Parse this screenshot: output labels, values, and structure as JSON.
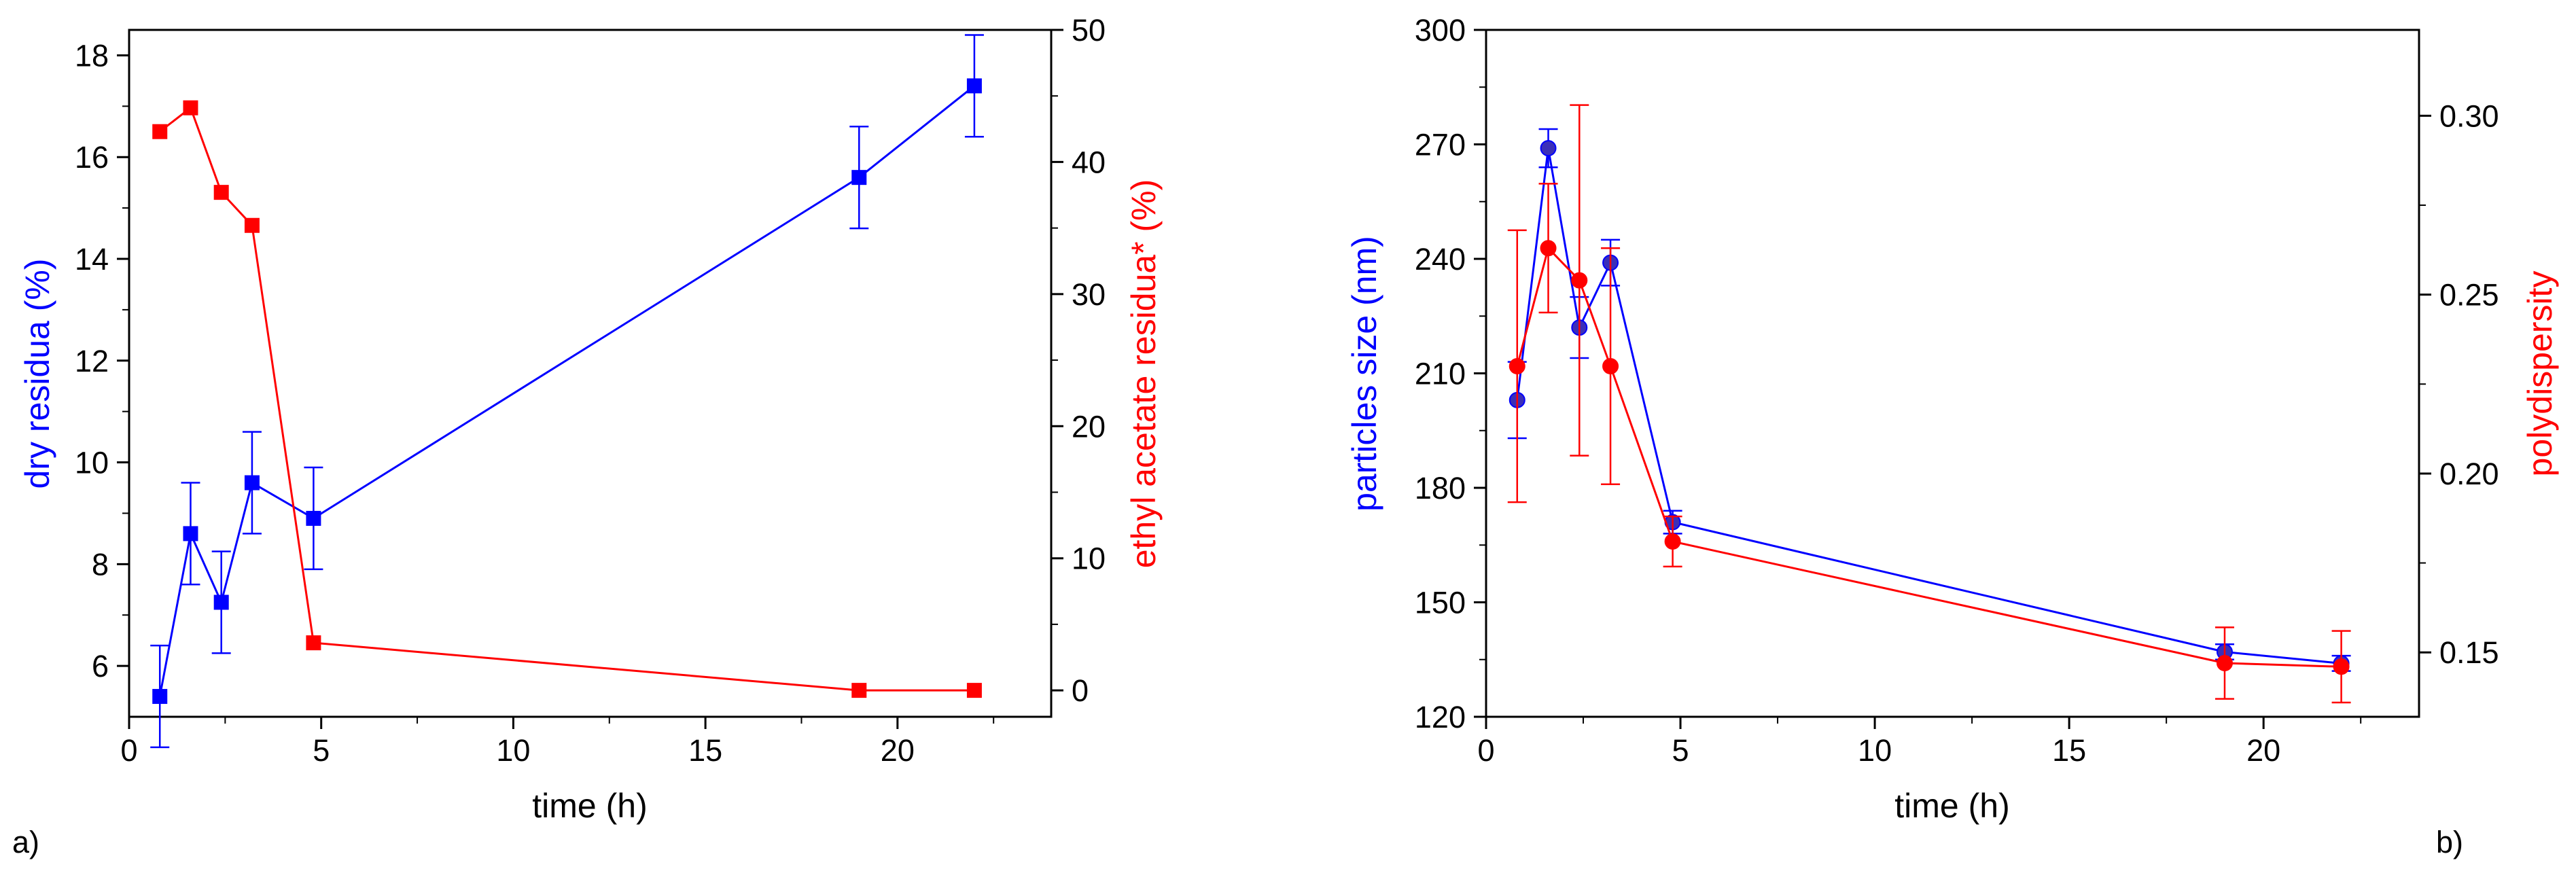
{
  "chart_data": [
    {
      "type": "line",
      "panel_label": "a)",
      "xlabel": "time (h)",
      "ylabel_left": "dry residua (%)",
      "ylabel_right": "ethyl acetate residua* (%)",
      "xlim": [
        0,
        24
      ],
      "ylim_left": [
        5,
        18.5
      ],
      "ylim_right": [
        -2,
        50
      ],
      "x_ticks": [
        0,
        5,
        10,
        15,
        20
      ],
      "y_ticks_left": [
        6,
        8,
        10,
        12,
        14,
        16,
        18
      ],
      "y_ticks_right": [
        0,
        10,
        20,
        30,
        40,
        50
      ],
      "grid": false,
      "series": [
        {
          "name": "dry residua",
          "axis": "left",
          "color": "#0000ff",
          "marker": "square",
          "x": [
            0.8,
            1.6,
            2.4,
            3.2,
            4.8,
            19,
            22
          ],
          "y": [
            5.4,
            8.6,
            7.25,
            9.6,
            8.9,
            15.6,
            17.4
          ],
          "error": [
            1.0,
            1.0,
            1.0,
            1.0,
            1.0,
            1.0,
            1.0
          ]
        },
        {
          "name": "ethyl acetate residua*",
          "axis": "right",
          "color": "#ff0000",
          "marker": "square",
          "x": [
            0.8,
            1.6,
            2.4,
            3.2,
            4.8,
            19,
            22
          ],
          "y": [
            42.3,
            44.1,
            37.7,
            35.2,
            3.6,
            0,
            0
          ]
        }
      ]
    },
    {
      "type": "line",
      "panel_label": "b)",
      "xlabel": "time (h)",
      "ylabel_left": "particles size (nm)",
      "ylabel_right": "polydispersity",
      "xlim": [
        0,
        24
      ],
      "ylim_left": [
        120,
        300
      ],
      "ylim_right": [
        0.132,
        0.324
      ],
      "x_ticks": [
        0,
        5,
        10,
        15,
        20
      ],
      "y_ticks_left": [
        120,
        150,
        180,
        210,
        240,
        270,
        300
      ],
      "y_ticks_right": [
        0.15,
        0.2,
        0.25,
        0.3
      ],
      "y_ticks_right_labels": [
        "0.15",
        "0.20",
        "0.25",
        "0.30"
      ],
      "grid": false,
      "series": [
        {
          "name": "particles size",
          "axis": "left",
          "color": "#0000ff",
          "marker": "circle",
          "x": [
            0.8,
            1.6,
            2.4,
            3.2,
            4.8,
            19,
            22
          ],
          "y": [
            203,
            269,
            222,
            239,
            171,
            137,
            134
          ],
          "error": [
            10,
            5,
            8,
            6,
            3,
            2,
            2
          ]
        },
        {
          "name": "polydispersity",
          "axis": "right",
          "color": "#ff0000",
          "marker": "circle",
          "x": [
            0.8,
            1.6,
            2.4,
            3.2,
            4.8,
            19,
            22
          ],
          "y": [
            0.23,
            0.263,
            0.254,
            0.23,
            0.181,
            0.147,
            0.146
          ],
          "error": [
            0.038,
            0.018,
            0.049,
            0.033,
            0.007,
            0.01,
            0.01
          ]
        }
      ]
    }
  ]
}
